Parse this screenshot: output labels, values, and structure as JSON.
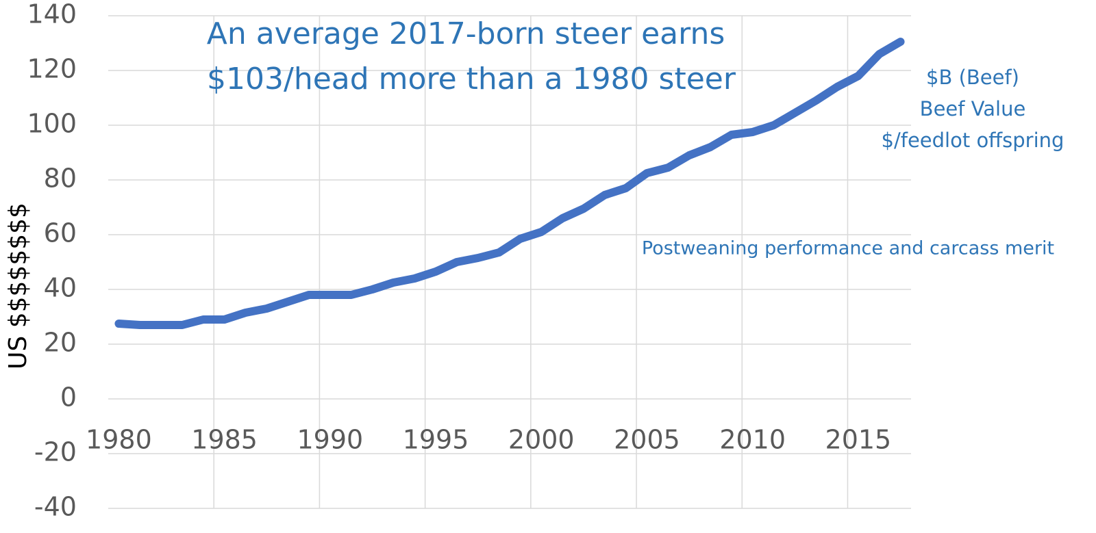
{
  "chart_data": {
    "type": "line",
    "title": [
      "An average 2017-born steer earns",
      "$103/head more than a 1980 steer"
    ],
    "series_label": [
      "$B (Beef)",
      "Beef Value",
      "$/feedlot offspring"
    ],
    "annotation": "Postweaning performance and carcass merit",
    "y_label": "US $$$$$$$$",
    "categories": [
      "1980",
      null,
      null,
      null,
      null,
      "1985",
      null,
      null,
      null,
      null,
      "1990",
      null,
      null,
      null,
      null,
      "1995",
      null,
      null,
      null,
      null,
      "2000",
      null,
      null,
      null,
      null,
      "2005",
      null,
      null,
      null,
      null,
      "2010",
      null,
      null,
      null,
      null,
      "2015",
      null,
      null
    ],
    "values": [
      27.5,
      27,
      27,
      27,
      29,
      29,
      31.5,
      33,
      35.5,
      38,
      38,
      38,
      40,
      42.5,
      44,
      46.5,
      50,
      51.5,
      53.5,
      58.5,
      61,
      66,
      69.5,
      74.5,
      77,
      82.5,
      84.5,
      89,
      92,
      96.5,
      97.5,
      100,
      104.5,
      109,
      114,
      118,
      126,
      130.5
    ],
    "color": "#4472c4",
    "ylim": [
      -40,
      140
    ],
    "yticks": [
      -40,
      -20,
      0,
      20,
      40,
      60,
      80,
      100,
      120,
      140
    ],
    "grid": true
  }
}
